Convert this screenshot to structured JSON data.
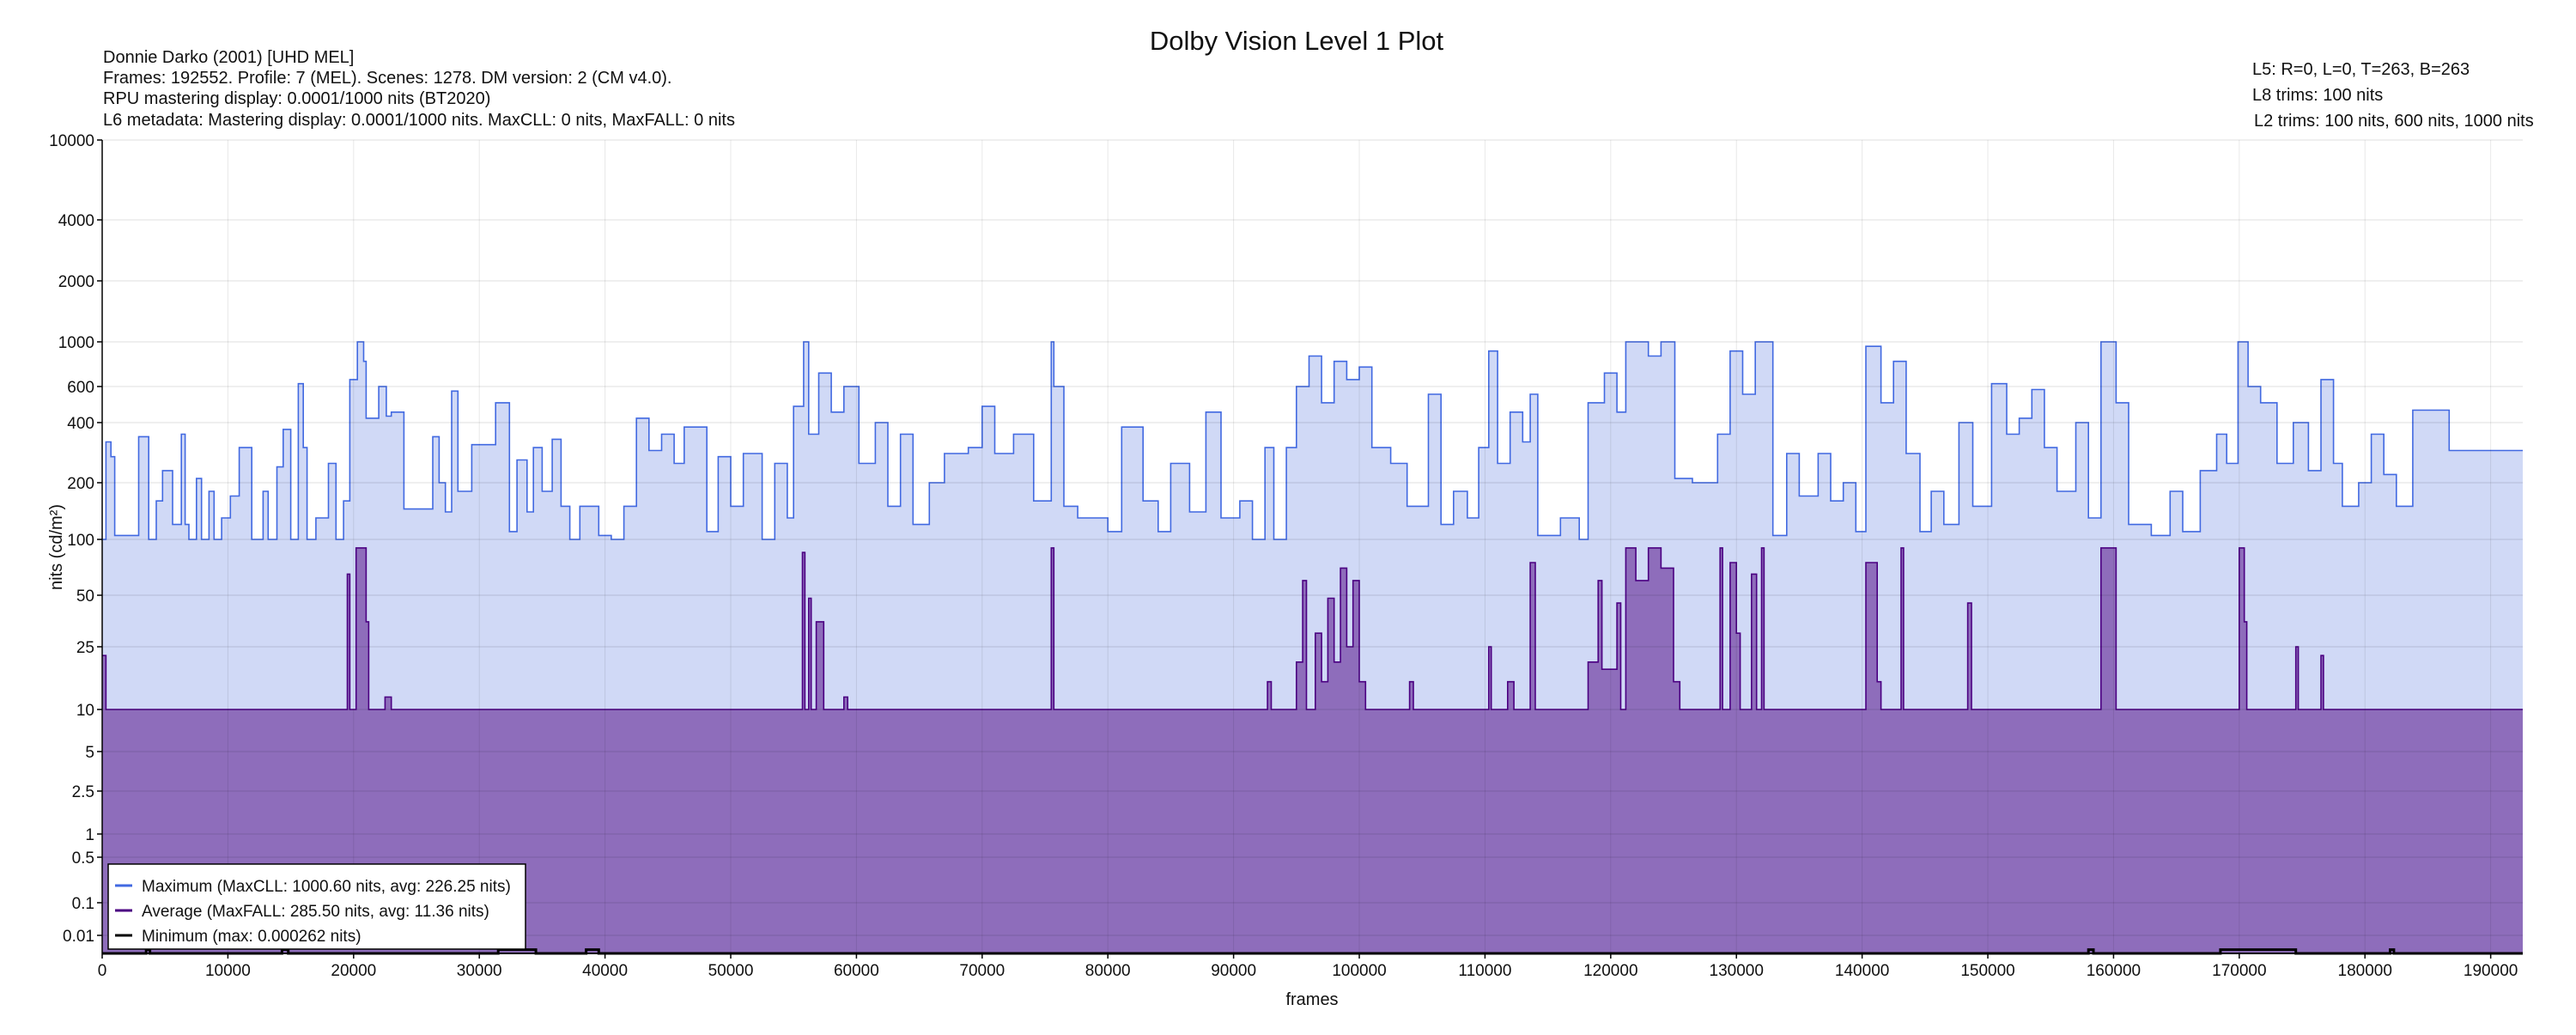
{
  "chart_data": {
    "type": "area",
    "title": "Dolby Vision Level 1 Plot",
    "xlabel": "frames",
    "ylabel": "nits (cd/m²)",
    "yscale": "PQ (perceptual, non-linear)",
    "xlim": [
      0,
      192552
    ],
    "ylim": [
      0,
      10000
    ],
    "grid": true,
    "legend_position": "bottom-left",
    "x_ticks": [
      "0",
      "10000",
      "20000",
      "30000",
      "40000",
      "50000",
      "60000",
      "70000",
      "80000",
      "90000",
      "100000",
      "110000",
      "120000",
      "130000",
      "140000",
      "150000",
      "160000",
      "170000",
      "180000",
      "190000"
    ],
    "y_ticks": [
      "10000",
      "4000",
      "2000",
      "1000",
      "600",
      "400",
      "200",
      "100",
      "50",
      "25",
      "10",
      "5",
      "2.5",
      "1",
      "0.5",
      "0.1",
      "0.01"
    ],
    "info_left": [
      "Donnie Darko (2001) [UHD MEL]",
      "Frames: 192552. Profile: 7 (MEL). Scenes: 1278. DM version: 2 (CM v4.0).",
      "RPU mastering display: 0.0001/1000 nits  (BT2020)",
      "L6 metadata: Mastering display: 0.0001/1000 nits. MaxCLL: 0 nits, MaxFALL: 0 nits"
    ],
    "info_right": [
      "L5: R=0, L=0, T=263, B=263",
      "L8 trims: 100 nits",
      "L2 trims: 100 nits, 600 nits, 1000 nits"
    ],
    "series": [
      {
        "name": "Maximum (MaxCLL: 1000.60 nits, avg: 226.25 nits)",
        "color": "#4169e1",
        "fill": "#d0d9f6",
        "step_points": [
          [
            0,
            100
          ],
          [
            300,
            320
          ],
          [
            700,
            270
          ],
          [
            1000,
            105
          ],
          [
            2900,
            340
          ],
          [
            3700,
            100
          ],
          [
            4300,
            160
          ],
          [
            4800,
            230
          ],
          [
            5600,
            120
          ],
          [
            6300,
            350
          ],
          [
            6600,
            120
          ],
          [
            6900,
            100
          ],
          [
            7500,
            210
          ],
          [
            7900,
            100
          ],
          [
            8500,
            180
          ],
          [
            8900,
            100
          ],
          [
            9500,
            130
          ],
          [
            10200,
            170
          ],
          [
            10900,
            300
          ],
          [
            11900,
            100
          ],
          [
            12800,
            180
          ],
          [
            13200,
            100
          ],
          [
            13900,
            240
          ],
          [
            14400,
            370
          ],
          [
            15000,
            100
          ],
          [
            15600,
            620
          ],
          [
            16000,
            300
          ],
          [
            16300,
            100
          ],
          [
            17000,
            130
          ],
          [
            18000,
            250
          ],
          [
            18600,
            100
          ],
          [
            19200,
            160
          ],
          [
            19700,
            650
          ],
          [
            20300,
            1000
          ],
          [
            20800,
            800
          ],
          [
            21000,
            420
          ],
          [
            22000,
            600
          ],
          [
            22600,
            430
          ],
          [
            23000,
            450
          ],
          [
            24000,
            145
          ],
          [
            26300,
            340
          ],
          [
            26800,
            200
          ],
          [
            27300,
            140
          ],
          [
            27800,
            570
          ],
          [
            28300,
            180
          ],
          [
            29400,
            310
          ],
          [
            31300,
            500
          ],
          [
            32400,
            110
          ],
          [
            33000,
            260
          ],
          [
            33800,
            140
          ],
          [
            34300,
            300
          ],
          [
            35000,
            180
          ],
          [
            35800,
            330
          ],
          [
            36500,
            150
          ],
          [
            37200,
            100
          ],
          [
            38000,
            150
          ],
          [
            39500,
            105
          ],
          [
            40500,
            100
          ],
          [
            41500,
            150
          ],
          [
            42500,
            420
          ],
          [
            43500,
            290
          ],
          [
            44500,
            350
          ],
          [
            45500,
            250
          ],
          [
            46300,
            380
          ],
          [
            48100,
            110
          ],
          [
            49000,
            270
          ],
          [
            50000,
            150
          ],
          [
            51000,
            280
          ],
          [
            52500,
            100
          ],
          [
            53500,
            250
          ],
          [
            54500,
            130
          ],
          [
            55000,
            480
          ],
          [
            55800,
            1000
          ],
          [
            56200,
            350
          ],
          [
            57000,
            700
          ],
          [
            58000,
            450
          ],
          [
            59000,
            600
          ],
          [
            60200,
            250
          ],
          [
            61500,
            400
          ],
          [
            62500,
            150
          ],
          [
            63500,
            350
          ],
          [
            64500,
            120
          ],
          [
            65800,
            200
          ],
          [
            67000,
            280
          ],
          [
            68900,
            300
          ],
          [
            70000,
            480
          ],
          [
            71000,
            280
          ],
          [
            72500,
            350
          ],
          [
            74100,
            160
          ],
          [
            75500,
            1000
          ],
          [
            75700,
            600
          ],
          [
            76500,
            150
          ],
          [
            77600,
            130
          ],
          [
            80000,
            110
          ],
          [
            81100,
            380
          ],
          [
            82800,
            160
          ],
          [
            84000,
            110
          ],
          [
            85000,
            250
          ],
          [
            86500,
            140
          ],
          [
            87800,
            450
          ],
          [
            89000,
            130
          ],
          [
            90500,
            160
          ],
          [
            91500,
            100
          ],
          [
            92500,
            300
          ],
          [
            93200,
            100
          ],
          [
            94200,
            300
          ],
          [
            95000,
            600
          ],
          [
            96000,
            850
          ],
          [
            97000,
            500
          ],
          [
            98000,
            800
          ],
          [
            99000,
            650
          ],
          [
            100000,
            750
          ],
          [
            101000,
            300
          ],
          [
            102500,
            250
          ],
          [
            103800,
            150
          ],
          [
            105500,
            550
          ],
          [
            106500,
            120
          ],
          [
            107500,
            180
          ],
          [
            108600,
            130
          ],
          [
            109500,
            300
          ],
          [
            110300,
            900
          ],
          [
            111000,
            250
          ],
          [
            112000,
            450
          ],
          [
            113000,
            320
          ],
          [
            113600,
            550
          ],
          [
            114200,
            105
          ],
          [
            116000,
            130
          ],
          [
            117500,
            100
          ],
          [
            118200,
            500
          ],
          [
            119500,
            700
          ],
          [
            120500,
            450
          ],
          [
            121200,
            1000
          ],
          [
            123000,
            850
          ],
          [
            124000,
            1000
          ],
          [
            125100,
            210
          ],
          [
            126500,
            200
          ],
          [
            128500,
            350
          ],
          [
            129500,
            900
          ],
          [
            130500,
            550
          ],
          [
            131500,
            1000
          ],
          [
            132900,
            105
          ],
          [
            134000,
            280
          ],
          [
            135000,
            170
          ],
          [
            136500,
            280
          ],
          [
            137500,
            160
          ],
          [
            138500,
            200
          ],
          [
            139500,
            110
          ],
          [
            140300,
            950
          ],
          [
            141500,
            500
          ],
          [
            142500,
            800
          ],
          [
            143500,
            280
          ],
          [
            144600,
            110
          ],
          [
            145500,
            180
          ],
          [
            146500,
            120
          ],
          [
            147700,
            400
          ],
          [
            148800,
            150
          ],
          [
            150300,
            620
          ],
          [
            151500,
            350
          ],
          [
            152500,
            420
          ],
          [
            153500,
            580
          ],
          [
            154500,
            300
          ],
          [
            155500,
            180
          ],
          [
            157000,
            400
          ],
          [
            158000,
            130
          ],
          [
            159000,
            1000
          ],
          [
            160200,
            500
          ],
          [
            161200,
            120
          ],
          [
            163000,
            105
          ],
          [
            164500,
            180
          ],
          [
            165500,
            110
          ],
          [
            166900,
            230
          ],
          [
            168200,
            350
          ],
          [
            169000,
            250
          ],
          [
            169900,
            1000
          ],
          [
            170700,
            600
          ],
          [
            171700,
            500
          ],
          [
            173000,
            250
          ],
          [
            174300,
            400
          ],
          [
            175500,
            230
          ],
          [
            176500,
            650
          ],
          [
            177500,
            250
          ],
          [
            178200,
            150
          ],
          [
            179500,
            200
          ],
          [
            180500,
            350
          ],
          [
            181500,
            220
          ],
          [
            182500,
            150
          ],
          [
            183800,
            460
          ],
          [
            186700,
            290
          ]
        ]
      },
      {
        "name": "Average (MaxFALL: 285.50 nits, avg: 11.36 nits)",
        "color": "#4b0082",
        "fill": "#8e6dbb",
        "step_points": [
          [
            0,
            22
          ],
          [
            300,
            10
          ],
          [
            19500,
            65
          ],
          [
            19700,
            10
          ],
          [
            20200,
            90
          ],
          [
            21000,
            35
          ],
          [
            21200,
            10
          ],
          [
            22500,
            12
          ],
          [
            23000,
            10
          ],
          [
            55700,
            85
          ],
          [
            55900,
            10
          ],
          [
            56200,
            48
          ],
          [
            56400,
            10
          ],
          [
            56800,
            35
          ],
          [
            57400,
            10
          ],
          [
            59000,
            12
          ],
          [
            59300,
            10
          ],
          [
            75500,
            90
          ],
          [
            75700,
            10
          ],
          [
            92700,
            15
          ],
          [
            93000,
            10
          ],
          [
            95000,
            20
          ],
          [
            95500,
            60
          ],
          [
            95800,
            10
          ],
          [
            96500,
            30
          ],
          [
            97000,
            15
          ],
          [
            97500,
            48
          ],
          [
            98000,
            20
          ],
          [
            98500,
            70
          ],
          [
            99000,
            25
          ],
          [
            99500,
            60
          ],
          [
            100000,
            15
          ],
          [
            100500,
            10
          ],
          [
            104000,
            15
          ],
          [
            104300,
            10
          ],
          [
            110300,
            25
          ],
          [
            110500,
            10
          ],
          [
            111800,
            15
          ],
          [
            112300,
            10
          ],
          [
            113600,
            75
          ],
          [
            114000,
            10
          ],
          [
            118200,
            20
          ],
          [
            119000,
            60
          ],
          [
            119300,
            18
          ],
          [
            120500,
            45
          ],
          [
            120800,
            10
          ],
          [
            121200,
            90
          ],
          [
            122000,
            60
          ],
          [
            123000,
            90
          ],
          [
            124000,
            70
          ],
          [
            125000,
            15
          ],
          [
            125500,
            10
          ],
          [
            128700,
            90
          ],
          [
            128900,
            10
          ],
          [
            129500,
            75
          ],
          [
            130000,
            30
          ],
          [
            130300,
            10
          ],
          [
            131200,
            65
          ],
          [
            131600,
            10
          ],
          [
            132000,
            90
          ],
          [
            132200,
            10
          ],
          [
            140300,
            75
          ],
          [
            141200,
            15
          ],
          [
            141500,
            10
          ],
          [
            143100,
            90
          ],
          [
            143300,
            10
          ],
          [
            148400,
            45
          ],
          [
            148700,
            10
          ],
          [
            159000,
            90
          ],
          [
            160200,
            10
          ],
          [
            170000,
            90
          ],
          [
            170400,
            35
          ],
          [
            170600,
            10
          ],
          [
            174500,
            25
          ],
          [
            174700,
            10
          ],
          [
            176500,
            22
          ],
          [
            176700,
            10
          ]
        ]
      },
      {
        "name": "Minimum (max: 0.000262 nits)",
        "color": "#000000",
        "step_points": [
          [
            0,
            0.0001
          ],
          [
            3500,
            0.000262
          ],
          [
            3800,
            0.0001
          ],
          [
            14300,
            0.000262
          ],
          [
            14800,
            0.0001
          ],
          [
            31500,
            0.000262
          ],
          [
            34500,
            0.0001
          ],
          [
            38500,
            0.000262
          ],
          [
            39500,
            0.0001
          ],
          [
            158000,
            0.000262
          ],
          [
            158400,
            0.0001
          ],
          [
            168500,
            0.000262
          ],
          [
            174500,
            0.0001
          ],
          [
            182000,
            0.000262
          ],
          [
            182300,
            0.0001
          ]
        ]
      }
    ]
  }
}
